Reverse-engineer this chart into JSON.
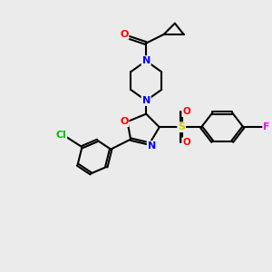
{
  "bg_color": "#ebebeb",
  "bond_color": "#000000",
  "bond_width": 1.5,
  "atom_colors": {
    "N": "#0000ff",
    "O": "#ff0000",
    "S": "#cccc00",
    "Cl": "#00bb00",
    "F": "#ff00ff",
    "C": "#000000"
  },
  "figsize": [
    3.0,
    3.0
  ],
  "dpi": 100,
  "xlim": [
    0,
    12
  ],
  "ylim": [
    0,
    12
  ]
}
